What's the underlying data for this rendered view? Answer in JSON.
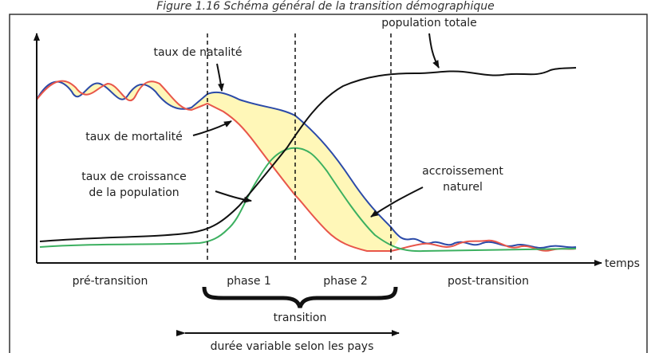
{
  "title": "Figure 1.16 Schéma général de la transition démographique",
  "labels": {
    "population_totale": "population totale",
    "taux_natalite": "taux de natalité",
    "taux_mortalite": "taux de mortalité",
    "taux_croissance": [
      "taux de croissance",
      "de la population"
    ],
    "accroissement": [
      "accroissement",
      "naturel"
    ],
    "temps": "temps",
    "phases": [
      "pré-transition",
      "phase 1",
      "phase 2",
      "post-transition"
    ],
    "transition": "transition",
    "duree": "durée variable selon les pays"
  }
}
